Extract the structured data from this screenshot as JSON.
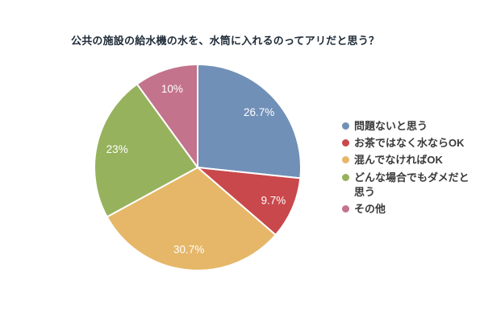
{
  "chart_data": {
    "type": "pie",
    "title": "公共の施設の給水機の水を、水筒に入れるのってアリだと思う？",
    "labels": [
      "問題ないと思う",
      "お茶ではなく水ならOK",
      "混んでなければOK",
      "どんな場合でもダメだと思う",
      "その他"
    ],
    "values": [
      26.7,
      9.7,
      30.7,
      23,
      10
    ],
    "value_labels": [
      "26.7%",
      "9.7%",
      "30.7%",
      "23%",
      "10%"
    ],
    "colors": [
      "#7090b8",
      "#c9484c",
      "#e6b768",
      "#96b25d",
      "#c3738c"
    ],
    "slice_border_color": "#ffffff",
    "label_color": "#ffffff",
    "legend_position": "right",
    "start_angle_deg": -90,
    "direction": "clockwise",
    "label_radius_ratio": 0.8
  },
  "styles": {
    "background": "#ffffff",
    "title_color": "#1f2b38",
    "legend_text_color": "#3a3a3a"
  }
}
